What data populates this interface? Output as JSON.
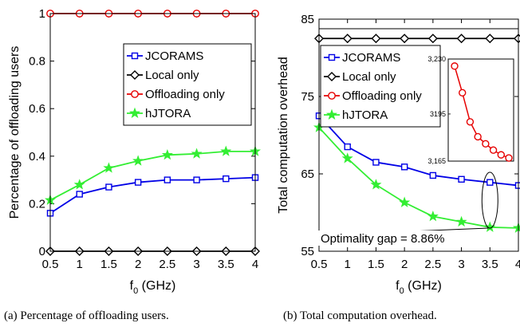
{
  "colors": {
    "JCORAMS": "#0000e6",
    "Local only": "#000000",
    "Offloading only": "#e60000",
    "hJTORA": "#33ee33"
  },
  "chart_data": [
    {
      "type": "line",
      "x": [
        0.5,
        1,
        1.5,
        2,
        2.5,
        3,
        3.5,
        4
      ],
      "xlabel": "f_0 (GHz)",
      "ylabel": "Percentage of offloading users",
      "xlim": [
        0.5,
        4
      ],
      "ylim": [
        0,
        1
      ],
      "xticks": [
        "0.5",
        "1",
        "1.5",
        "2",
        "2.5",
        "3",
        "3.5",
        "4"
      ],
      "yticks": [
        "0",
        "0.2",
        "0.4",
        "0.6",
        "0.8",
        "1"
      ],
      "grid": false,
      "legend": "right",
      "series": [
        {
          "name": "JCORAMS",
          "marker": "square",
          "values": [
            0.16,
            0.24,
            0.27,
            0.29,
            0.3,
            0.3,
            0.305,
            0.31
          ]
        },
        {
          "name": "Local only",
          "marker": "diamond",
          "values": [
            0,
            0,
            0,
            0,
            0,
            0,
            0,
            0
          ]
        },
        {
          "name": "Offloading only",
          "marker": "circle",
          "values": [
            1,
            1,
            1,
            1,
            1,
            1,
            1,
            1
          ]
        },
        {
          "name": "hJTORA",
          "marker": "star",
          "values": [
            0.215,
            0.28,
            0.35,
            0.38,
            0.405,
            0.41,
            0.42,
            0.42
          ]
        }
      ],
      "caption": "(a) Percentage of offloading users."
    },
    {
      "type": "line",
      "x": [
        0.5,
        1,
        1.5,
        2,
        2.5,
        3,
        3.5,
        4
      ],
      "xlabel": "f_0 (GHz)",
      "ylabel": "Total computation overhead",
      "xlim": [
        0.5,
        4
      ],
      "ylim": [
        55,
        85
      ],
      "xticks": [
        "0.5",
        "1",
        "1.5",
        "2",
        "2.5",
        "3",
        "3.5",
        "4"
      ],
      "yticks": [
        "55",
        "65",
        "75",
        "85"
      ],
      "grid": false,
      "legend": "top-left",
      "series": [
        {
          "name": "JCORAMS",
          "marker": "square",
          "values": [
            72.5,
            68.5,
            66.5,
            65.9,
            64.8,
            64.3,
            63.9,
            63.5
          ]
        },
        {
          "name": "Local only",
          "marker": "diamond",
          "values": [
            82.5,
            82.5,
            82.5,
            82.5,
            82.5,
            82.5,
            82.5,
            82.5
          ]
        },
        {
          "name": "Offloading only",
          "marker": "circle",
          "values": [
            3225.5,
            3208.5,
            3190,
            3180.5,
            3176,
            3172,
            3169,
            3167
          ]
        },
        {
          "name": "hJTORA",
          "marker": "star",
          "values": [
            71,
            67,
            63.6,
            61.3,
            59.5,
            58.8,
            58.1,
            58
          ]
        }
      ],
      "inset": {
        "series": "Offloading only",
        "ylim": [
          3165,
          3230
        ],
        "yticks": [
          "3,165",
          "3195",
          "3,230"
        ]
      },
      "annotation": "Optimality gap = 8.86%",
      "caption": "(b) Total computation overhead."
    }
  ]
}
